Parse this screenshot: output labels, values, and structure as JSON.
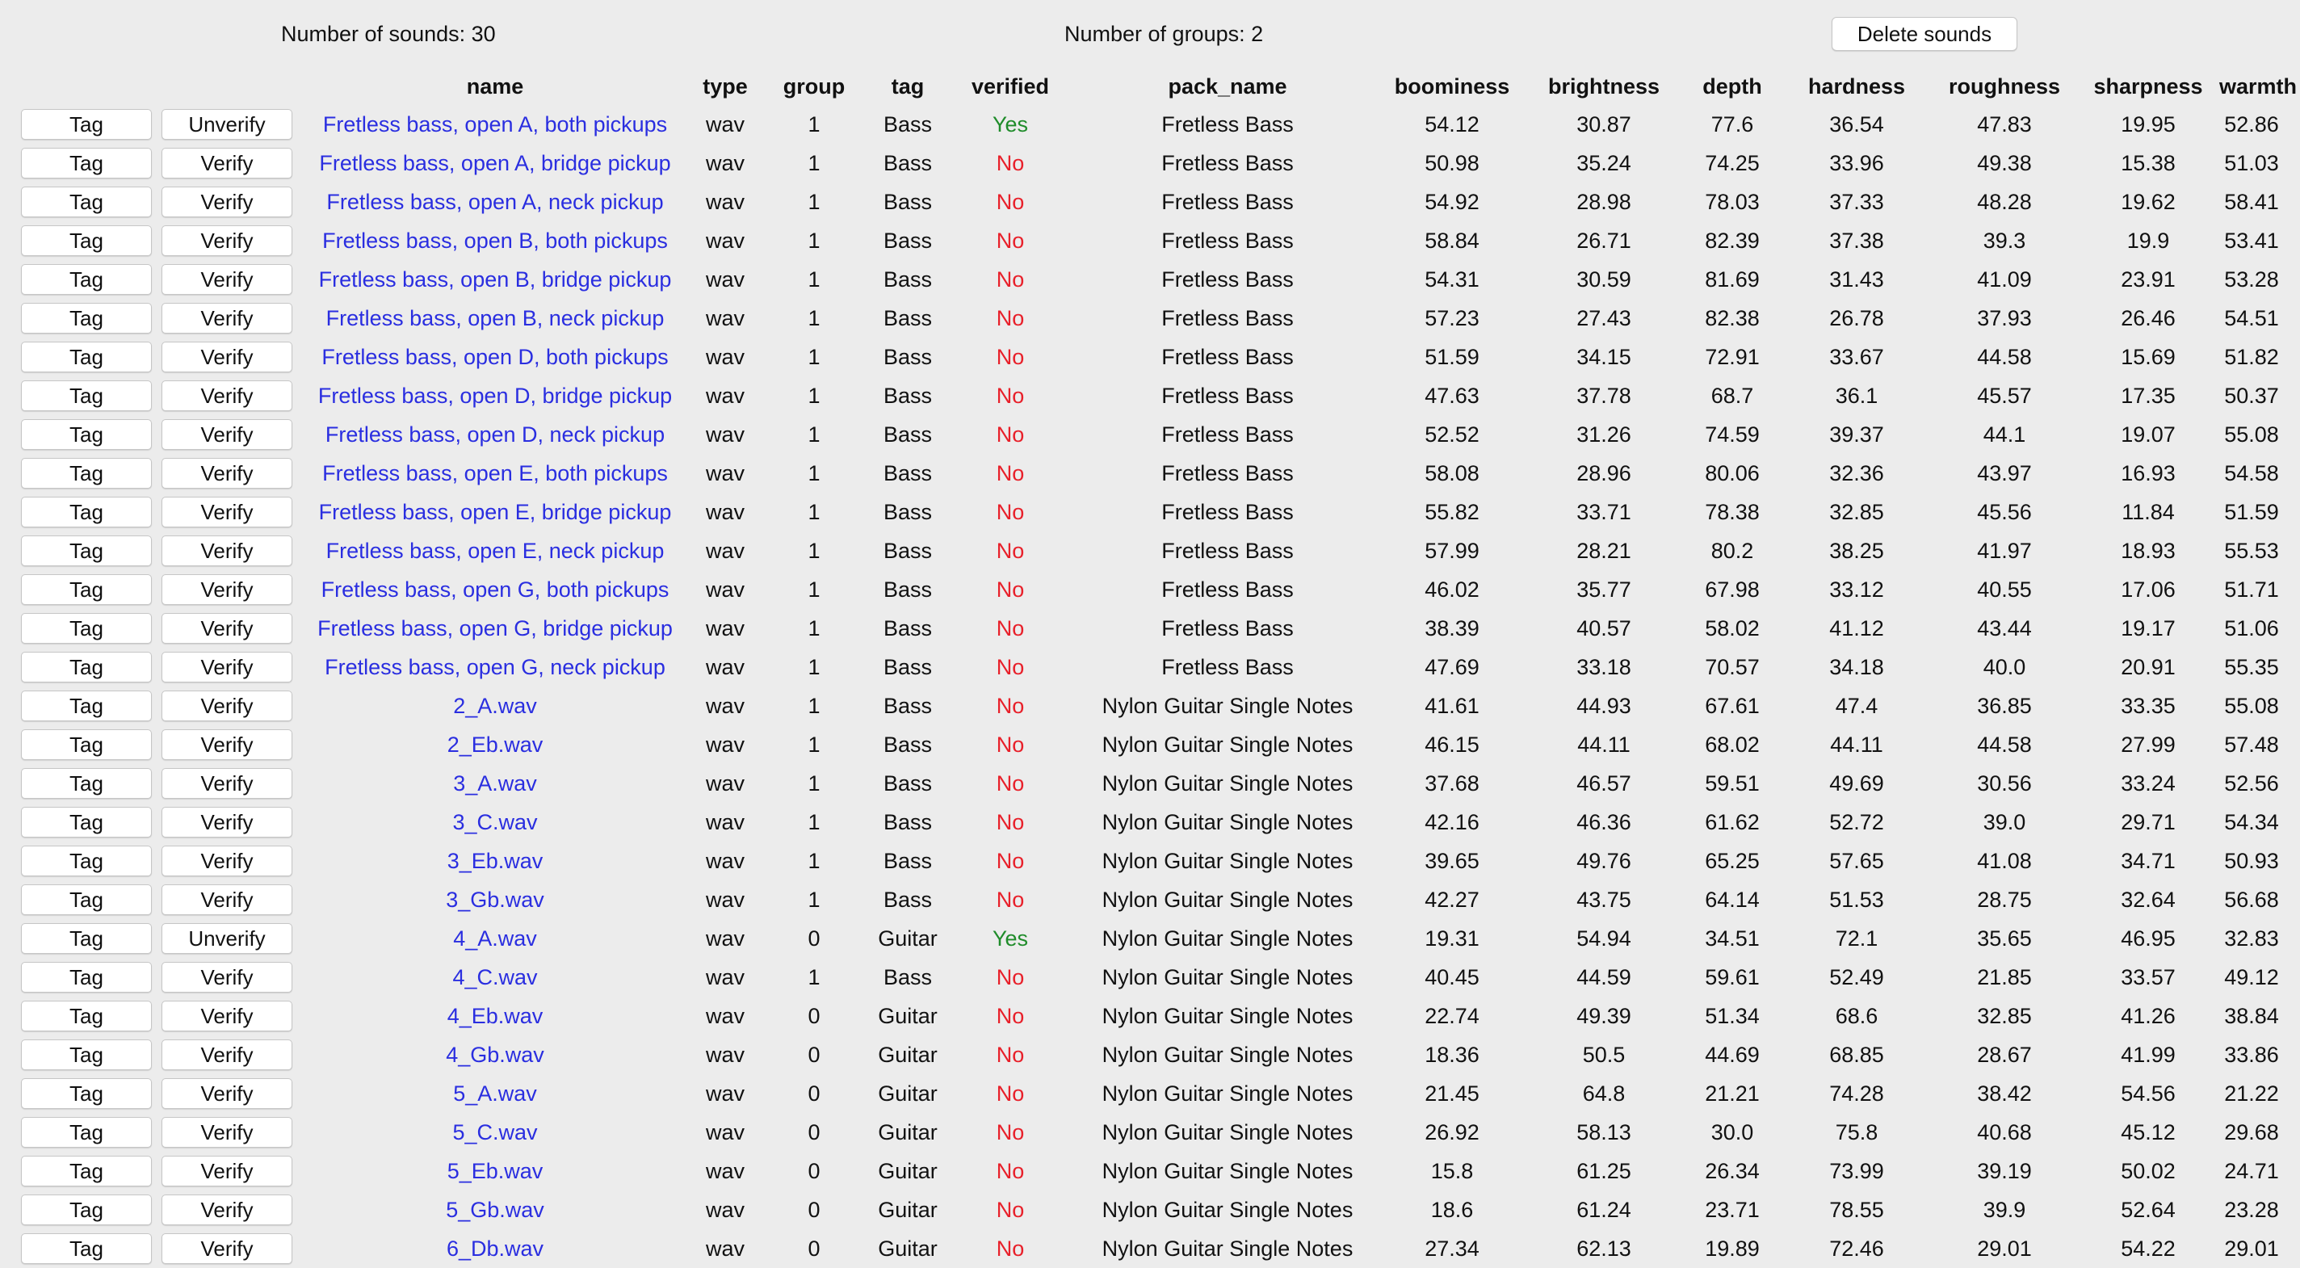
{
  "header": {
    "sounds_count": "Number of sounds: 30",
    "groups_count": "Number of groups: 2",
    "delete_label": "Delete sounds"
  },
  "colors": {
    "link": "#2a2ee0",
    "verified_yes": "#1f8c2a",
    "verified_no": "#e8202a",
    "background": "#ececec"
  },
  "table": {
    "columns": [
      "",
      "",
      "name",
      "type",
      "group",
      "tag",
      "verified",
      "pack_name",
      "boominess",
      "brightness",
      "depth",
      "hardness",
      "roughness",
      "sharpness",
      "warmth"
    ],
    "rows": [
      {
        "tag_btn": "Tag",
        "verify_btn": "Unverify",
        "name": "Fretless bass, open A, both pickups",
        "type": "wav",
        "group": "1",
        "tag": "Bass",
        "verified": "Yes",
        "pack_name": "Fretless Bass",
        "boominess": "54.12",
        "brightness": "30.87",
        "depth": "77.6",
        "hardness": "36.54",
        "roughness": "47.83",
        "sharpness": "19.95",
        "warmth": "52.86"
      },
      {
        "tag_btn": "Tag",
        "verify_btn": "Verify",
        "name": "Fretless bass, open A, bridge pickup",
        "type": "wav",
        "group": "1",
        "tag": "Bass",
        "verified": "No",
        "pack_name": "Fretless Bass",
        "boominess": "50.98",
        "brightness": "35.24",
        "depth": "74.25",
        "hardness": "33.96",
        "roughness": "49.38",
        "sharpness": "15.38",
        "warmth": "51.03"
      },
      {
        "tag_btn": "Tag",
        "verify_btn": "Verify",
        "name": "Fretless bass, open A, neck pickup",
        "type": "wav",
        "group": "1",
        "tag": "Bass",
        "verified": "No",
        "pack_name": "Fretless Bass",
        "boominess": "54.92",
        "brightness": "28.98",
        "depth": "78.03",
        "hardness": "37.33",
        "roughness": "48.28",
        "sharpness": "19.62",
        "warmth": "58.41"
      },
      {
        "tag_btn": "Tag",
        "verify_btn": "Verify",
        "name": "Fretless bass, open B, both pickups",
        "type": "wav",
        "group": "1",
        "tag": "Bass",
        "verified": "No",
        "pack_name": "Fretless Bass",
        "boominess": "58.84",
        "brightness": "26.71",
        "depth": "82.39",
        "hardness": "37.38",
        "roughness": "39.3",
        "sharpness": "19.9",
        "warmth": "53.41"
      },
      {
        "tag_btn": "Tag",
        "verify_btn": "Verify",
        "name": "Fretless bass, open B, bridge pickup",
        "type": "wav",
        "group": "1",
        "tag": "Bass",
        "verified": "No",
        "pack_name": "Fretless Bass",
        "boominess": "54.31",
        "brightness": "30.59",
        "depth": "81.69",
        "hardness": "31.43",
        "roughness": "41.09",
        "sharpness": "23.91",
        "warmth": "53.28"
      },
      {
        "tag_btn": "Tag",
        "verify_btn": "Verify",
        "name": "Fretless bass, open B, neck pickup",
        "type": "wav",
        "group": "1",
        "tag": "Bass",
        "verified": "No",
        "pack_name": "Fretless Bass",
        "boominess": "57.23",
        "brightness": "27.43",
        "depth": "82.38",
        "hardness": "26.78",
        "roughness": "37.93",
        "sharpness": "26.46",
        "warmth": "54.51"
      },
      {
        "tag_btn": "Tag",
        "verify_btn": "Verify",
        "name": "Fretless bass, open D, both pickups",
        "type": "wav",
        "group": "1",
        "tag": "Bass",
        "verified": "No",
        "pack_name": "Fretless Bass",
        "boominess": "51.59",
        "brightness": "34.15",
        "depth": "72.91",
        "hardness": "33.67",
        "roughness": "44.58",
        "sharpness": "15.69",
        "warmth": "51.82"
      },
      {
        "tag_btn": "Tag",
        "verify_btn": "Verify",
        "name": "Fretless bass, open D, bridge pickup",
        "type": "wav",
        "group": "1",
        "tag": "Bass",
        "verified": "No",
        "pack_name": "Fretless Bass",
        "boominess": "47.63",
        "brightness": "37.78",
        "depth": "68.7",
        "hardness": "36.1",
        "roughness": "45.57",
        "sharpness": "17.35",
        "warmth": "50.37"
      },
      {
        "tag_btn": "Tag",
        "verify_btn": "Verify",
        "name": "Fretless bass, open D, neck pickup",
        "type": "wav",
        "group": "1",
        "tag": "Bass",
        "verified": "No",
        "pack_name": "Fretless Bass",
        "boominess": "52.52",
        "brightness": "31.26",
        "depth": "74.59",
        "hardness": "39.37",
        "roughness": "44.1",
        "sharpness": "19.07",
        "warmth": "55.08"
      },
      {
        "tag_btn": "Tag",
        "verify_btn": "Verify",
        "name": "Fretless bass, open E, both pickups",
        "type": "wav",
        "group": "1",
        "tag": "Bass",
        "verified": "No",
        "pack_name": "Fretless Bass",
        "boominess": "58.08",
        "brightness": "28.96",
        "depth": "80.06",
        "hardness": "32.36",
        "roughness": "43.97",
        "sharpness": "16.93",
        "warmth": "54.58"
      },
      {
        "tag_btn": "Tag",
        "verify_btn": "Verify",
        "name": "Fretless bass, open E, bridge pickup",
        "type": "wav",
        "group": "1",
        "tag": "Bass",
        "verified": "No",
        "pack_name": "Fretless Bass",
        "boominess": "55.82",
        "brightness": "33.71",
        "depth": "78.38",
        "hardness": "32.85",
        "roughness": "45.56",
        "sharpness": "11.84",
        "warmth": "51.59"
      },
      {
        "tag_btn": "Tag",
        "verify_btn": "Verify",
        "name": "Fretless bass, open E, neck pickup",
        "type": "wav",
        "group": "1",
        "tag": "Bass",
        "verified": "No",
        "pack_name": "Fretless Bass",
        "boominess": "57.99",
        "brightness": "28.21",
        "depth": "80.2",
        "hardness": "38.25",
        "roughness": "41.97",
        "sharpness": "18.93",
        "warmth": "55.53"
      },
      {
        "tag_btn": "Tag",
        "verify_btn": "Verify",
        "name": "Fretless bass, open G, both pickups",
        "type": "wav",
        "group": "1",
        "tag": "Bass",
        "verified": "No",
        "pack_name": "Fretless Bass",
        "boominess": "46.02",
        "brightness": "35.77",
        "depth": "67.98",
        "hardness": "33.12",
        "roughness": "40.55",
        "sharpness": "17.06",
        "warmth": "51.71"
      },
      {
        "tag_btn": "Tag",
        "verify_btn": "Verify",
        "name": "Fretless bass, open G, bridge pickup",
        "type": "wav",
        "group": "1",
        "tag": "Bass",
        "verified": "No",
        "pack_name": "Fretless Bass",
        "boominess": "38.39",
        "brightness": "40.57",
        "depth": "58.02",
        "hardness": "41.12",
        "roughness": "43.44",
        "sharpness": "19.17",
        "warmth": "51.06"
      },
      {
        "tag_btn": "Tag",
        "verify_btn": "Verify",
        "name": "Fretless bass, open G, neck pickup",
        "type": "wav",
        "group": "1",
        "tag": "Bass",
        "verified": "No",
        "pack_name": "Fretless Bass",
        "boominess": "47.69",
        "brightness": "33.18",
        "depth": "70.57",
        "hardness": "34.18",
        "roughness": "40.0",
        "sharpness": "20.91",
        "warmth": "55.35"
      },
      {
        "tag_btn": "Tag",
        "verify_btn": "Verify",
        "name": "2_A.wav",
        "type": "wav",
        "group": "1",
        "tag": "Bass",
        "verified": "No",
        "pack_name": "Nylon Guitar Single Notes",
        "boominess": "41.61",
        "brightness": "44.93",
        "depth": "67.61",
        "hardness": "47.4",
        "roughness": "36.85",
        "sharpness": "33.35",
        "warmth": "55.08"
      },
      {
        "tag_btn": "Tag",
        "verify_btn": "Verify",
        "name": "2_Eb.wav",
        "type": "wav",
        "group": "1",
        "tag": "Bass",
        "verified": "No",
        "pack_name": "Nylon Guitar Single Notes",
        "boominess": "46.15",
        "brightness": "44.11",
        "depth": "68.02",
        "hardness": "44.11",
        "roughness": "44.58",
        "sharpness": "27.99",
        "warmth": "57.48"
      },
      {
        "tag_btn": "Tag",
        "verify_btn": "Verify",
        "name": "3_A.wav",
        "type": "wav",
        "group": "1",
        "tag": "Bass",
        "verified": "No",
        "pack_name": "Nylon Guitar Single Notes",
        "boominess": "37.68",
        "brightness": "46.57",
        "depth": "59.51",
        "hardness": "49.69",
        "roughness": "30.56",
        "sharpness": "33.24",
        "warmth": "52.56"
      },
      {
        "tag_btn": "Tag",
        "verify_btn": "Verify",
        "name": "3_C.wav",
        "type": "wav",
        "group": "1",
        "tag": "Bass",
        "verified": "No",
        "pack_name": "Nylon Guitar Single Notes",
        "boominess": "42.16",
        "brightness": "46.36",
        "depth": "61.62",
        "hardness": "52.72",
        "roughness": "39.0",
        "sharpness": "29.71",
        "warmth": "54.34"
      },
      {
        "tag_btn": "Tag",
        "verify_btn": "Verify",
        "name": "3_Eb.wav",
        "type": "wav",
        "group": "1",
        "tag": "Bass",
        "verified": "No",
        "pack_name": "Nylon Guitar Single Notes",
        "boominess": "39.65",
        "brightness": "49.76",
        "depth": "65.25",
        "hardness": "57.65",
        "roughness": "41.08",
        "sharpness": "34.71",
        "warmth": "50.93"
      },
      {
        "tag_btn": "Tag",
        "verify_btn": "Verify",
        "name": "3_Gb.wav",
        "type": "wav",
        "group": "1",
        "tag": "Bass",
        "verified": "No",
        "pack_name": "Nylon Guitar Single Notes",
        "boominess": "42.27",
        "brightness": "43.75",
        "depth": "64.14",
        "hardness": "51.53",
        "roughness": "28.75",
        "sharpness": "32.64",
        "warmth": "56.68"
      },
      {
        "tag_btn": "Tag",
        "verify_btn": "Unverify",
        "name": "4_A.wav",
        "type": "wav",
        "group": "0",
        "tag": "Guitar",
        "verified": "Yes",
        "pack_name": "Nylon Guitar Single Notes",
        "boominess": "19.31",
        "brightness": "54.94",
        "depth": "34.51",
        "hardness": "72.1",
        "roughness": "35.65",
        "sharpness": "46.95",
        "warmth": "32.83"
      },
      {
        "tag_btn": "Tag",
        "verify_btn": "Verify",
        "name": "4_C.wav",
        "type": "wav",
        "group": "1",
        "tag": "Bass",
        "verified": "No",
        "pack_name": "Nylon Guitar Single Notes",
        "boominess": "40.45",
        "brightness": "44.59",
        "depth": "59.61",
        "hardness": "52.49",
        "roughness": "21.85",
        "sharpness": "33.57",
        "warmth": "49.12"
      },
      {
        "tag_btn": "Tag",
        "verify_btn": "Verify",
        "name": "4_Eb.wav",
        "type": "wav",
        "group": "0",
        "tag": "Guitar",
        "verified": "No",
        "pack_name": "Nylon Guitar Single Notes",
        "boominess": "22.74",
        "brightness": "49.39",
        "depth": "51.34",
        "hardness": "68.6",
        "roughness": "32.85",
        "sharpness": "41.26",
        "warmth": "38.84"
      },
      {
        "tag_btn": "Tag",
        "verify_btn": "Verify",
        "name": "4_Gb.wav",
        "type": "wav",
        "group": "0",
        "tag": "Guitar",
        "verified": "No",
        "pack_name": "Nylon Guitar Single Notes",
        "boominess": "18.36",
        "brightness": "50.5",
        "depth": "44.69",
        "hardness": "68.85",
        "roughness": "28.67",
        "sharpness": "41.99",
        "warmth": "33.86"
      },
      {
        "tag_btn": "Tag",
        "verify_btn": "Verify",
        "name": "5_A.wav",
        "type": "wav",
        "group": "0",
        "tag": "Guitar",
        "verified": "No",
        "pack_name": "Nylon Guitar Single Notes",
        "boominess": "21.45",
        "brightness": "64.8",
        "depth": "21.21",
        "hardness": "74.28",
        "roughness": "38.42",
        "sharpness": "54.56",
        "warmth": "21.22"
      },
      {
        "tag_btn": "Tag",
        "verify_btn": "Verify",
        "name": "5_C.wav",
        "type": "wav",
        "group": "0",
        "tag": "Guitar",
        "verified": "No",
        "pack_name": "Nylon Guitar Single Notes",
        "boominess": "26.92",
        "brightness": "58.13",
        "depth": "30.0",
        "hardness": "75.8",
        "roughness": "40.68",
        "sharpness": "45.12",
        "warmth": "29.68"
      },
      {
        "tag_btn": "Tag",
        "verify_btn": "Verify",
        "name": "5_Eb.wav",
        "type": "wav",
        "group": "0",
        "tag": "Guitar",
        "verified": "No",
        "pack_name": "Nylon Guitar Single Notes",
        "boominess": "15.8",
        "brightness": "61.25",
        "depth": "26.34",
        "hardness": "73.99",
        "roughness": "39.19",
        "sharpness": "50.02",
        "warmth": "24.71"
      },
      {
        "tag_btn": "Tag",
        "verify_btn": "Verify",
        "name": "5_Gb.wav",
        "type": "wav",
        "group": "0",
        "tag": "Guitar",
        "verified": "No",
        "pack_name": "Nylon Guitar Single Notes",
        "boominess": "18.6",
        "brightness": "61.24",
        "depth": "23.71",
        "hardness": "78.55",
        "roughness": "39.9",
        "sharpness": "52.64",
        "warmth": "23.28"
      },
      {
        "tag_btn": "Tag",
        "verify_btn": "Verify",
        "name": "6_Db.wav",
        "type": "wav",
        "group": "0",
        "tag": "Guitar",
        "verified": "No",
        "pack_name": "Nylon Guitar Single Notes",
        "boominess": "27.34",
        "brightness": "62.13",
        "depth": "19.89",
        "hardness": "72.46",
        "roughness": "29.01",
        "sharpness": "54.22",
        "warmth": "29.01"
      }
    ]
  }
}
